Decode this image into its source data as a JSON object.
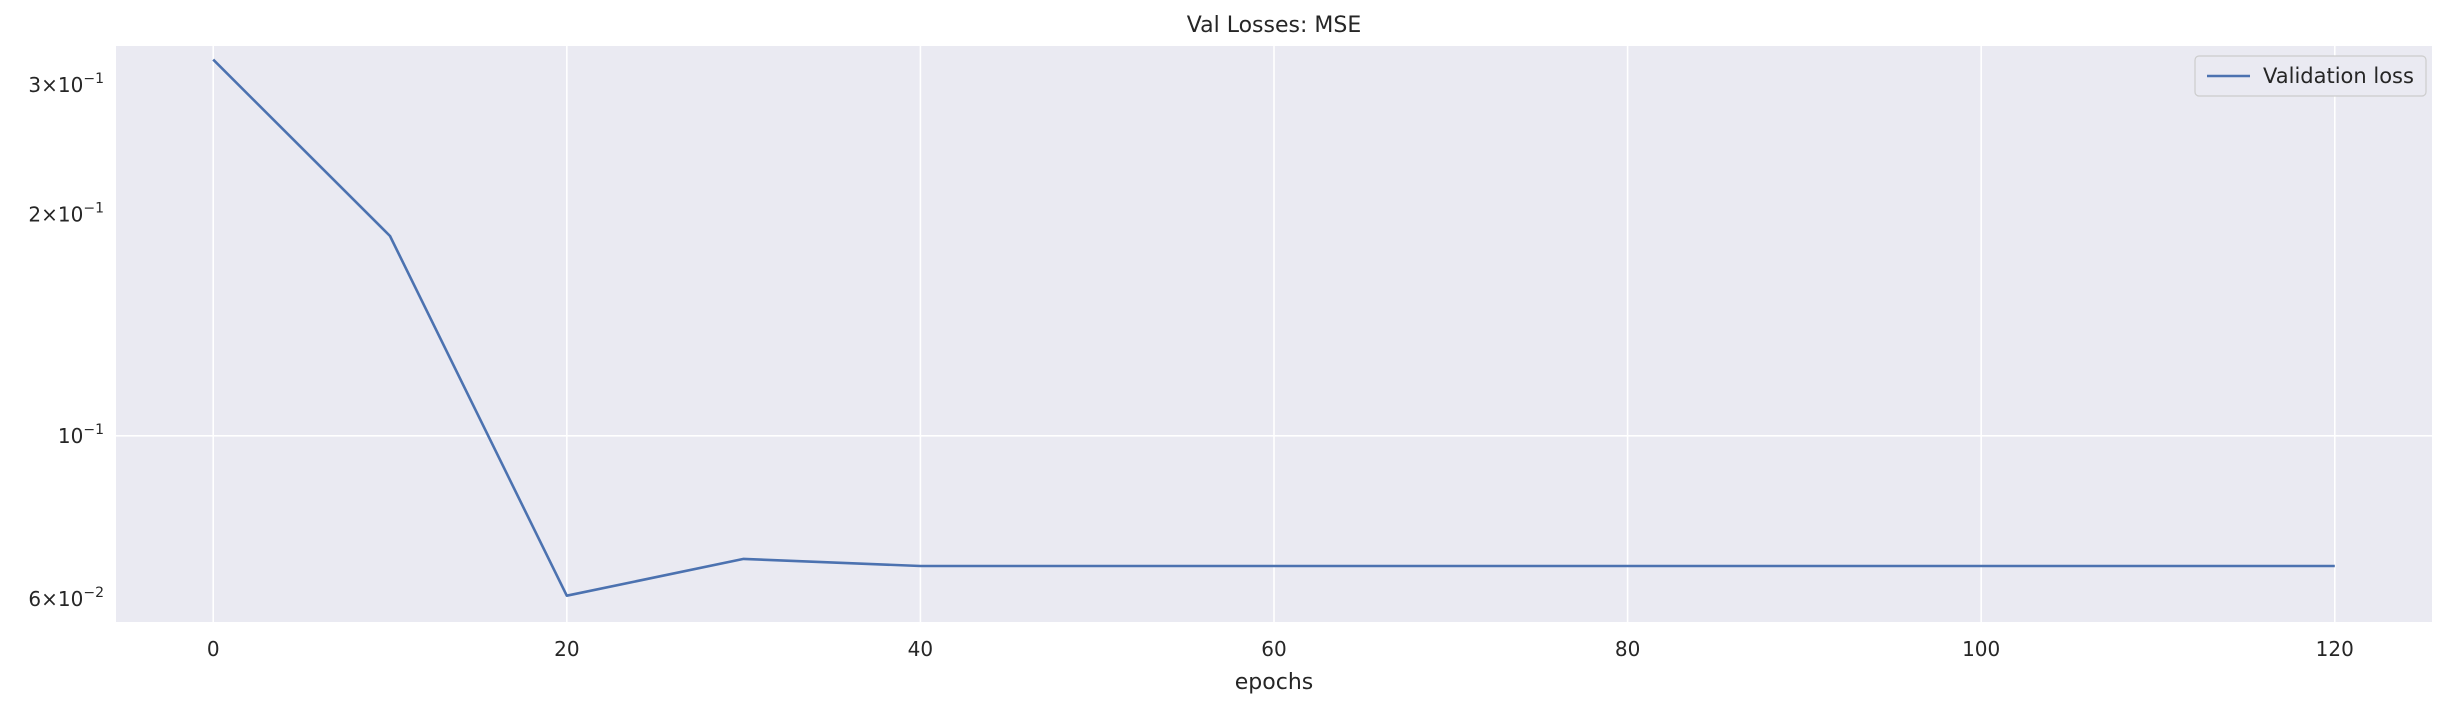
{
  "chart_data": {
    "type": "line",
    "title": "Val Losses:  MSE",
    "xlabel": "epochs",
    "ylabel": "",
    "yscale": "log",
    "xlim": [
      -5.5,
      125.5
    ],
    "ylim": [
      0.0558,
      0.3392
    ],
    "x_ticks": [
      {
        "value": 0,
        "label": "0"
      },
      {
        "value": 20,
        "label": "20"
      },
      {
        "value": 40,
        "label": "40"
      },
      {
        "value": 60,
        "label": "60"
      },
      {
        "value": 80,
        "label": "80"
      },
      {
        "value": 100,
        "label": "100"
      },
      {
        "value": 120,
        "label": "120"
      }
    ],
    "y_ticks": [
      {
        "value": 0.3,
        "mant": "3",
        "exp": "−1"
      },
      {
        "value": 0.2,
        "mant": "2",
        "exp": "−1"
      },
      {
        "value": 0.1,
        "mant": "",
        "exp": "−1"
      },
      {
        "value": 0.06,
        "mant": "6",
        "exp": "−2"
      }
    ],
    "y_gridlines": [
      0.1
    ],
    "grid": true,
    "legend": "top-right",
    "series": [
      {
        "name": "Validation loss",
        "color": "#4c72b0",
        "x": [
          0,
          10,
          20,
          30,
          40,
          50,
          60,
          70,
          80,
          90,
          100,
          110,
          120
        ],
        "y": [
          0.325,
          0.187,
          0.0606,
          0.068,
          0.0665,
          0.0665,
          0.0665,
          0.0665,
          0.0665,
          0.0665,
          0.0665,
          0.0665,
          0.0665
        ]
      }
    ]
  },
  "colors": {
    "plot_background": "#eaeaf2",
    "grid": "#ffffff",
    "text": "#262626"
  }
}
